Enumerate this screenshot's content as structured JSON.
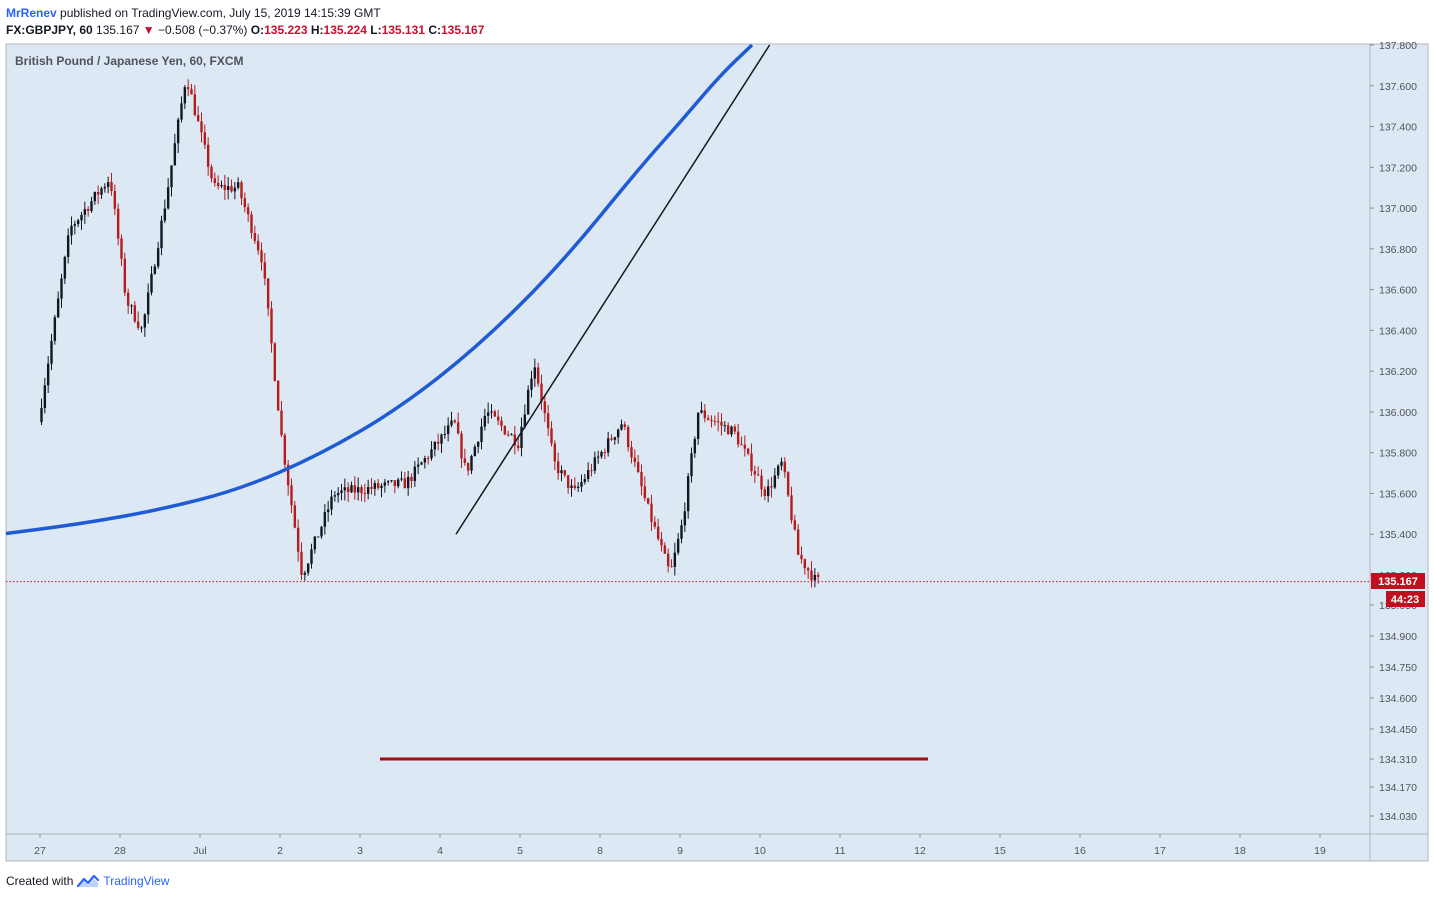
{
  "header": {
    "author": "MrRenev",
    "published_text": "published on TradingView.com, July 15, 2019 14:15:39 GMT"
  },
  "quote": {
    "symbol": "FX:GBPJPY, 60",
    "last": "135.167",
    "change": "−0.508 (−0.37%)",
    "o_label": "O:",
    "o": "135.223",
    "h_label": "H:",
    "h": "135.224",
    "l_label": "L:",
    "l": "135.131",
    "c_label": "C:",
    "c": "135.167"
  },
  "footer": {
    "created_with": "Created with",
    "brand": "TradingView"
  },
  "colors": {
    "background": "#dce8f4",
    "bull_candle": "#131722",
    "bear_candle": "#b71c1c",
    "curve": "#1e5bd4",
    "trendline": "#131722",
    "target_line": "#a30d0d",
    "price_tag": "#c0101f"
  },
  "chart_data": {
    "type": "candlestick",
    "title": "British Pound / Japanese Yen, 60, FXCM",
    "price_tag": "135.167",
    "countdown_tag": "44:23",
    "y_ticks": [
      "137.800",
      "137.600",
      "137.400",
      "137.200",
      "137.000",
      "136.800",
      "136.600",
      "136.400",
      "136.200",
      "136.000",
      "135.800",
      "135.600",
      "135.400",
      "135.200",
      "135.050",
      "134.900",
      "134.750",
      "134.600",
      "134.450",
      "134.310",
      "134.170",
      "134.030"
    ],
    "x_ticks": [
      "27",
      "28",
      "Jul",
      "2",
      "3",
      "4",
      "5",
      "8",
      "9",
      "10",
      "11",
      "12",
      "15",
      "16",
      "17",
      "18",
      "19"
    ],
    "anchors": [
      {
        "t": 0.0,
        "p": 135.95
      },
      {
        "t": 0.4,
        "p": 136.9
      },
      {
        "t": 0.9,
        "p": 137.15
      },
      {
        "t": 1.1,
        "p": 136.55
      },
      {
        "t": 1.3,
        "p": 136.4
      },
      {
        "t": 1.6,
        "p": 137.05
      },
      {
        "t": 1.85,
        "p": 137.65
      },
      {
        "t": 2.2,
        "p": 137.1
      },
      {
        "t": 2.5,
        "p": 137.1
      },
      {
        "t": 2.8,
        "p": 136.75
      },
      {
        "t": 3.05,
        "p": 135.85
      },
      {
        "t": 3.3,
        "p": 135.2
      },
      {
        "t": 3.7,
        "p": 135.6
      },
      {
        "t": 4.6,
        "p": 135.65
      },
      {
        "t": 5.2,
        "p": 135.95
      },
      {
        "t": 5.35,
        "p": 135.7
      },
      {
        "t": 5.6,
        "p": 136.0
      },
      {
        "t": 6.0,
        "p": 135.85
      },
      {
        "t": 6.2,
        "p": 136.25
      },
      {
        "t": 6.45,
        "p": 135.75
      },
      {
        "t": 6.7,
        "p": 135.6
      },
      {
        "t": 7.3,
        "p": 135.95
      },
      {
        "t": 7.6,
        "p": 135.55
      },
      {
        "t": 7.9,
        "p": 135.2
      },
      {
        "t": 8.05,
        "p": 135.45
      },
      {
        "t": 8.25,
        "p": 136.0
      },
      {
        "t": 8.7,
        "p": 135.9
      },
      {
        "t": 9.1,
        "p": 135.6
      },
      {
        "t": 9.3,
        "p": 135.75
      },
      {
        "t": 9.5,
        "p": 135.3
      },
      {
        "t": 9.72,
        "p": 135.17
      }
    ],
    "trendline": {
      "t1": 5.2,
      "p1": 135.4,
      "t2": 9.12,
      "p2": 137.8
    },
    "curve": [
      {
        "t": -0.5,
        "p": 135.4
      },
      {
        "t": 0.5,
        "p": 135.45
      },
      {
        "t": 1.5,
        "p": 135.52
      },
      {
        "t": 2.5,
        "p": 135.62
      },
      {
        "t": 3.5,
        "p": 135.79
      },
      {
        "t": 4.5,
        "p": 136.02
      },
      {
        "t": 5.5,
        "p": 136.33
      },
      {
        "t": 6.5,
        "p": 136.72
      },
      {
        "t": 7.5,
        "p": 137.2
      },
      {
        "t": 8.0,
        "p": 137.42
      },
      {
        "t": 8.5,
        "p": 137.65
      },
      {
        "t": 8.9,
        "p": 137.8
      }
    ],
    "target_line": {
      "t1": 4.25,
      "t2": 11.1,
      "p": 134.31
    },
    "current_price": 135.167
  }
}
